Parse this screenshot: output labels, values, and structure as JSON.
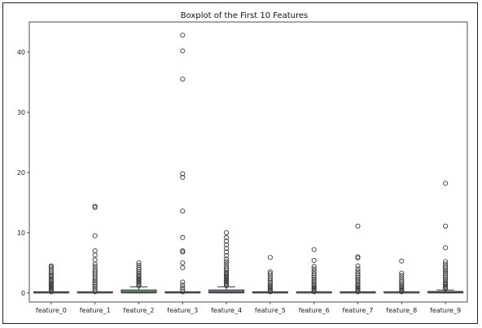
{
  "chart_data": {
    "type": "box",
    "title": "Boxplot of the First 10 Features",
    "xlabel": "",
    "ylabel": "",
    "ylim": [
      -1.5,
      45
    ],
    "yticks": [
      0,
      10,
      20,
      30,
      40
    ],
    "grid": false,
    "categories": [
      "feature_0",
      "feature_1",
      "feature_2",
      "feature_3",
      "feature_4",
      "feature_5",
      "feature_6",
      "feature_7",
      "feature_8",
      "feature_9"
    ],
    "boxes": [
      {
        "q1": 0.0,
        "median": 0.0,
        "q3": 0.05,
        "whisker_low": 0.0,
        "whisker_high": 0.1,
        "color": "#4c72b0",
        "outliers": [
          0.2,
          0.4,
          0.6,
          0.8,
          1.0,
          1.2,
          1.4,
          1.6,
          1.8,
          2.0,
          2.2,
          2.5,
          2.8,
          3.0,
          3.3,
          3.6,
          4.0,
          4.3,
          4.5
        ]
      },
      {
        "q1": 0.0,
        "median": 0.0,
        "q3": 0.05,
        "whisker_low": 0.0,
        "whisker_high": 0.1,
        "color": "#dd8452",
        "outliers": [
          0.2,
          0.5,
          0.8,
          1.1,
          1.4,
          1.7,
          2.0,
          2.3,
          2.6,
          3.0,
          3.3,
          3.6,
          4.0,
          4.4,
          4.8,
          5.5,
          6.3,
          7.0,
          9.5,
          14.2,
          14.4
        ]
      },
      {
        "q1": 0.0,
        "median": 0.15,
        "q3": 0.5,
        "whisker_low": 0.0,
        "whisker_high": 1.0,
        "color": "#55a868",
        "outliers": [
          1.2,
          1.4,
          1.6,
          1.8,
          2.0,
          2.2,
          2.4,
          2.6,
          2.8,
          3.0,
          3.3,
          3.6,
          3.9,
          4.2,
          4.6,
          5.0
        ]
      },
      {
        "q1": 0.0,
        "median": 0.0,
        "q3": 0.05,
        "whisker_low": 0.0,
        "whisker_high": 0.1,
        "color": "#c44e52",
        "outliers": [
          0.2,
          0.5,
          0.9,
          1.3,
          1.8,
          4.2,
          5.0,
          6.8,
          7.0,
          9.2,
          13.6,
          19.2,
          19.8,
          35.5,
          40.2,
          42.8
        ]
      },
      {
        "q1": 0.0,
        "median": 0.15,
        "q3": 0.5,
        "whisker_low": 0.0,
        "whisker_high": 1.0,
        "color": "#8172b3",
        "outliers": [
          1.2,
          1.4,
          1.6,
          1.8,
          2.0,
          2.2,
          2.4,
          2.6,
          2.8,
          3.0,
          3.2,
          3.4,
          3.7,
          4.0,
          4.4,
          4.8,
          5.2,
          5.6,
          6.2,
          6.8,
          7.4,
          8.0,
          8.6,
          9.2,
          10.0
        ]
      },
      {
        "q1": 0.0,
        "median": 0.0,
        "q3": 0.05,
        "whisker_low": 0.0,
        "whisker_high": 0.1,
        "color": "#937860",
        "outliers": [
          0.2,
          0.4,
          0.6,
          0.8,
          1.0,
          1.2,
          1.5,
          1.8,
          2.1,
          2.4,
          2.8,
          3.2,
          3.5,
          5.9
        ]
      },
      {
        "q1": 0.0,
        "median": 0.0,
        "q3": 0.05,
        "whisker_low": 0.0,
        "whisker_high": 0.1,
        "color": "#da8bc3",
        "outliers": [
          0.2,
          0.4,
          0.6,
          0.8,
          1.0,
          1.2,
          1.4,
          1.7,
          2.0,
          2.3,
          2.6,
          2.9,
          3.2,
          3.6,
          4.0,
          4.4,
          5.4,
          7.2
        ]
      },
      {
        "q1": 0.0,
        "median": 0.0,
        "q3": 0.05,
        "whisker_low": 0.0,
        "whisker_high": 0.1,
        "color": "#8c8c8c",
        "outliers": [
          0.2,
          0.4,
          0.6,
          0.8,
          1.0,
          1.2,
          1.4,
          1.7,
          2.0,
          2.3,
          2.6,
          2.9,
          3.2,
          3.6,
          4.0,
          4.5,
          5.8,
          6.0,
          11.1
        ]
      },
      {
        "q1": 0.0,
        "median": 0.0,
        "q3": 0.05,
        "whisker_low": 0.0,
        "whisker_high": 0.1,
        "color": "#ccb974",
        "outliers": [
          0.2,
          0.4,
          0.6,
          0.8,
          1.0,
          1.2,
          1.5,
          1.8,
          2.1,
          2.5,
          2.9,
          3.3,
          5.3
        ]
      },
      {
        "q1": 0.0,
        "median": 0.1,
        "q3": 0.25,
        "whisker_low": 0.0,
        "whisker_high": 0.5,
        "color": "#64b5cd",
        "outliers": [
          0.7,
          0.9,
          1.1,
          1.3,
          1.5,
          1.7,
          2.0,
          2.3,
          2.6,
          2.9,
          3.2,
          3.5,
          3.8,
          4.1,
          4.4,
          4.8,
          5.2,
          7.5,
          11.1,
          18.2
        ]
      }
    ]
  }
}
